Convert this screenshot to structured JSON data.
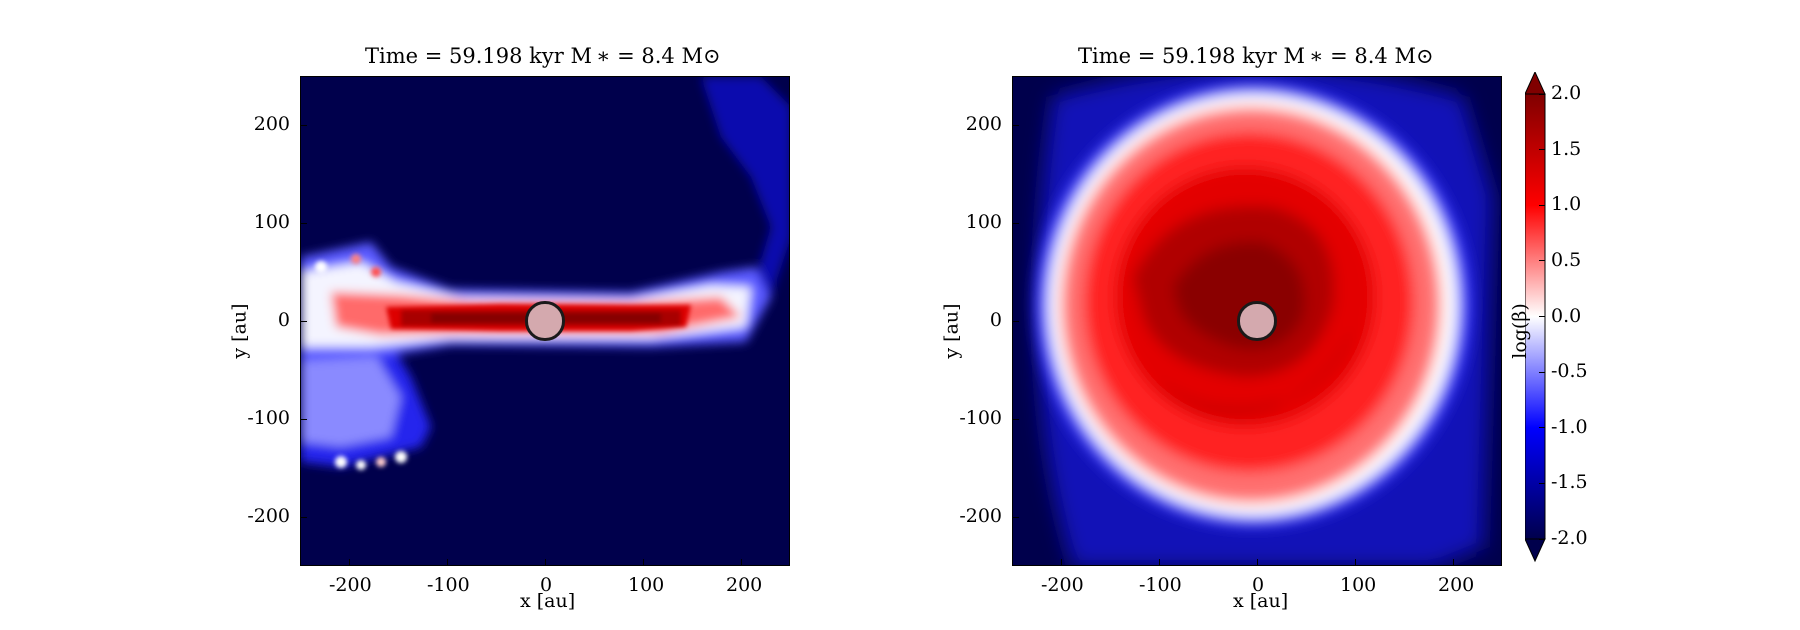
{
  "figure": {
    "colormap": "seismic",
    "colors": {
      "low": "#00004c",
      "mid_low": "#0000ff",
      "mid": "#ffffff",
      "mid_high": "#ff0000",
      "high": "#800000",
      "sink_fill": "#d4a9ae",
      "sink_edge": "#1a1a1a"
    }
  },
  "chart_data": [
    {
      "type": "heatmap",
      "panel": "left",
      "title": "Time = 59.198 kyr   M ∗ = 8.4 M⊙",
      "xlabel": "x [au]",
      "ylabel": "y [au]",
      "xlim": [
        -250,
        250
      ],
      "ylim": [
        -250,
        250
      ],
      "xticks": [
        -200,
        -100,
        0,
        100,
        200
      ],
      "yticks": [
        -200,
        -100,
        0,
        100,
        200
      ],
      "xtick_labels": [
        "-200",
        "-100",
        "0",
        "100",
        "200"
      ],
      "ytick_labels": [
        "200",
        "100",
        "0",
        "-100",
        "-200"
      ],
      "quantity": "log(β)",
      "view": "edge-on disk",
      "sink_particle": {
        "x": 0,
        "y": 0,
        "radius_au": 20
      }
    },
    {
      "type": "heatmap",
      "panel": "right",
      "title": "Time = 59.198 kyr   M ∗ = 8.4 M⊙",
      "xlabel": "x [au]",
      "ylabel": "y [au]",
      "xlim": [
        -250,
        250
      ],
      "ylim": [
        -250,
        250
      ],
      "xticks": [
        -200,
        -100,
        0,
        100,
        200
      ],
      "yticks": [
        -200,
        -100,
        0,
        100,
        200
      ],
      "xtick_labels": [
        "-200",
        "-100",
        "0",
        "100",
        "200"
      ],
      "ytick_labels": [
        "200",
        "100",
        "0",
        "-100",
        "-200"
      ],
      "quantity": "log(β)",
      "view": "face-on disk",
      "sink_particle": {
        "x": 0,
        "y": 0,
        "radius_au": 20
      }
    }
  ],
  "colorbar": {
    "label": "log(β)",
    "range": [
      -2.0,
      2.0
    ],
    "ticks": [
      2.0,
      1.5,
      1.0,
      0.5,
      0.0,
      -0.5,
      -1.0,
      -1.5,
      -2.0
    ],
    "tick_labels": [
      "2.0",
      "1.5",
      "1.0",
      "0.5",
      "0.0",
      "-0.5",
      "-1.0",
      "-1.5",
      "-2.0"
    ],
    "extend": "both"
  }
}
